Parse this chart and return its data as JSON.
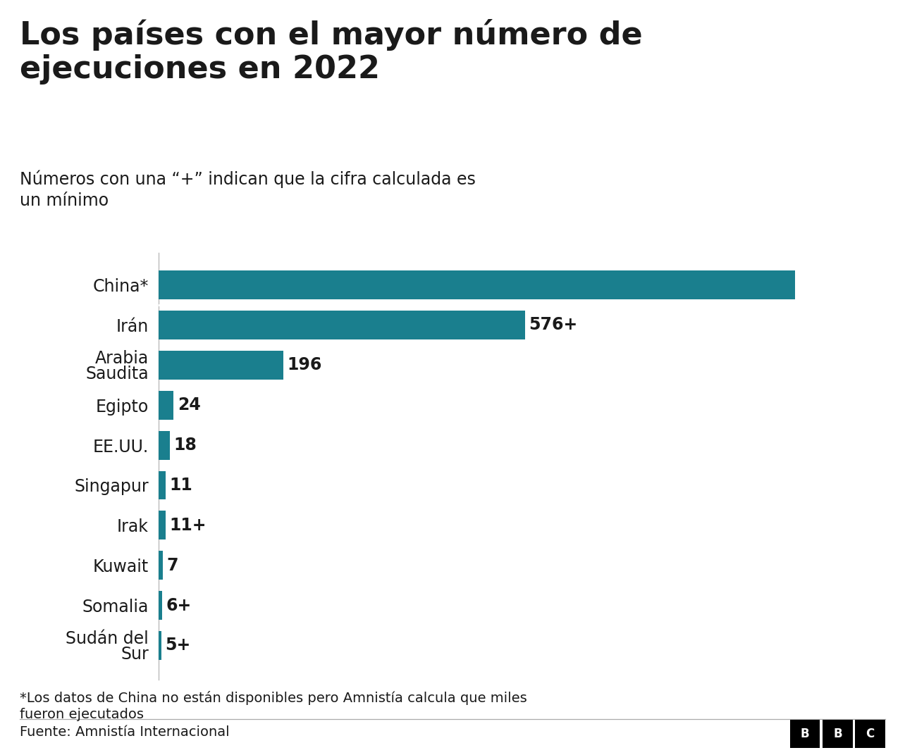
{
  "title_line1": "Los países con el mayor número de",
  "title_line2": "ejecuciones en 2022",
  "subtitle": "Números con una “+” indican que la cifra calculada es\nun mínimo",
  "footnote": "*Los datos de China no están disponibles pero Amnistía calcula que miles\nfueron ejecutados",
  "source": "Fuente: Amnistía Internacional",
  "countries": [
    "China*",
    "Irán",
    "Arabia\nSaudita",
    "Egipto",
    "EE.UU.",
    "Singapur",
    "Irak",
    "Kuwait",
    "Somalia",
    "Sudán del\nSur"
  ],
  "values": [
    1000,
    576,
    196,
    24,
    18,
    11,
    11,
    7,
    6,
    5
  ],
  "labels": [
    "",
    "576+",
    "196",
    "24",
    "18",
    "11",
    "11+",
    "7",
    "6+",
    "5+"
  ],
  "bar_color": "#1a7f8e",
  "background_color": "#ffffff",
  "text_color": "#1a1a1a",
  "title_fontsize": 32,
  "subtitle_fontsize": 17,
  "label_fontsize": 17,
  "country_fontsize": 17,
  "footnote_fontsize": 14,
  "source_fontsize": 14
}
